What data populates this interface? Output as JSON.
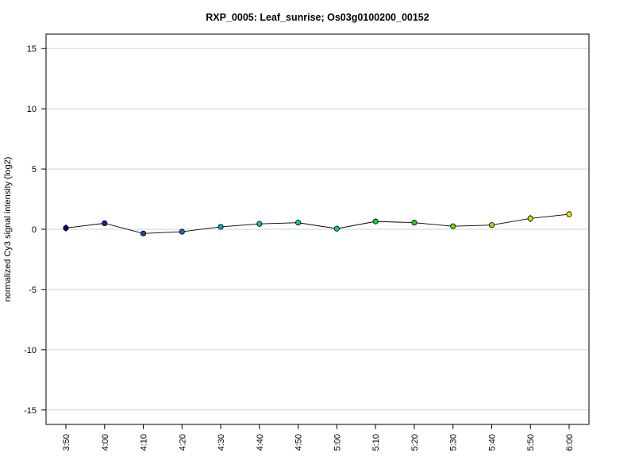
{
  "chart_data": {
    "type": "line",
    "title": "RXP_0005: Leaf_sunrise; Os03g0100200_00152",
    "xlabel": "",
    "ylabel": "normalized Cy3 signal intensity (log2)",
    "categories": [
      "3:50",
      "4:00",
      "4:10",
      "4:20",
      "4:30",
      "4:40",
      "4:50",
      "5:00",
      "5:10",
      "5:20",
      "5:30",
      "5:40",
      "5:50",
      "6:00"
    ],
    "values": [
      0.1,
      0.5,
      -0.35,
      -0.2,
      0.2,
      0.45,
      0.55,
      0.05,
      0.65,
      0.55,
      0.25,
      0.35,
      0.9,
      1.25
    ],
    "error": [
      0.3,
      0.1,
      0.1,
      0.15,
      0.15,
      0.25,
      0.1,
      0.1,
      0.1,
      0.12,
      0.12,
      0.1,
      0.3,
      0.25
    ],
    "point_colors": [
      "#00008B",
      "#0A2A9E",
      "#1646B2",
      "#1E62C0",
      "#00A8C8",
      "#00BEBE",
      "#00CDB0",
      "#00D48A",
      "#10D63A",
      "#2AD020",
      "#6BD11A",
      "#A5DA10",
      "#CFDE08",
      "#F2E60A"
    ],
    "ylim": [
      -16.2,
      16.2
    ],
    "yticks": [
      -15,
      -10,
      -5,
      0,
      5,
      10,
      15
    ],
    "grid": true,
    "legend": "none"
  }
}
